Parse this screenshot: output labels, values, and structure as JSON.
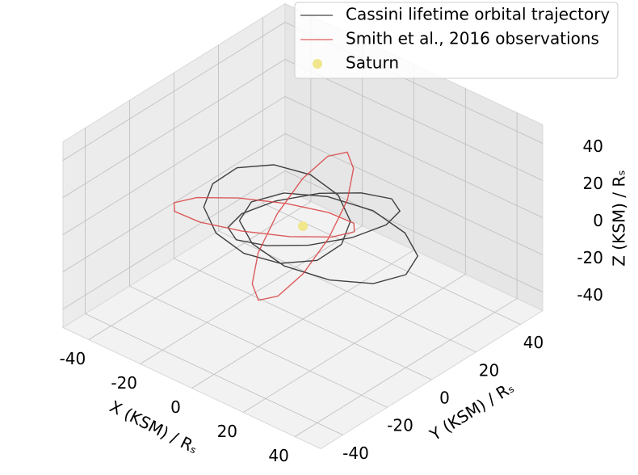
{
  "chart_data": {
    "type": "line3d",
    "xlabel": "X (KSM) / Rₛ",
    "ylabel": "Y (KSM) / Rₛ",
    "zlabel": "Z (KSM) / Rₛ",
    "xlim": [
      -50,
      50
    ],
    "ylim": [
      -50,
      50
    ],
    "zlim": [
      -50,
      50
    ],
    "xticks": [
      -40,
      -20,
      0,
      20,
      40
    ],
    "yticks": [
      -40,
      -20,
      0,
      20,
      40
    ],
    "zticks": [
      -40,
      -20,
      0,
      20,
      40
    ],
    "grid": true,
    "legend": "upper right",
    "series": [
      {
        "name": "Cassini lifetime orbital trajectory",
        "color": "#222222",
        "x": [
          40,
          36,
          25,
          10,
          -5,
          -16,
          -20,
          -16,
          -5,
          10,
          25,
          36,
          40,
          null,
          15,
          12,
          2.5,
          -10,
          -22.5,
          -32,
          -35,
          -32,
          -22.5,
          -10,
          2.5,
          12,
          15,
          null,
          15,
          13,
          7.5,
          0,
          -7.5,
          -13,
          -15,
          -13,
          -7.5,
          0,
          7.5,
          13,
          15
        ],
        "y": [
          0,
          10,
          17,
          20,
          17,
          10,
          0,
          -10,
          -17,
          -20,
          -17,
          -10,
          0,
          null,
          0,
          7.5,
          13,
          15,
          13,
          7.5,
          0,
          -7.5,
          -13,
          -15,
          -13,
          -7.5,
          0,
          null,
          5,
          22.5,
          35,
          40,
          35,
          22.5,
          5,
          -12.5,
          -25,
          -30,
          -25,
          -12.5,
          5
        ],
        "z": [
          0,
          0,
          0,
          0,
          0,
          0,
          0,
          0,
          0,
          0,
          0,
          0,
          0,
          null,
          0,
          5,
          8.7,
          10,
          8.7,
          5,
          0,
          -5,
          -8.7,
          -10,
          -8.7,
          -5,
          0,
          null,
          0,
          -7.5,
          -13,
          -15,
          -13,
          -7.5,
          0,
          7.5,
          13,
          15,
          13,
          7.5,
          0
        ]
      },
      {
        "name": "Smith et al., 2016 observations",
        "color": "#d94040",
        "x": [
          20,
          15.5,
          2.5,
          -15,
          -32.5,
          -45.5,
          -50,
          -45.5,
          -32.5,
          -15,
          2.5,
          15.5,
          20,
          null,
          10,
          8.7,
          5,
          0,
          -5,
          -8.7,
          -10,
          -8.7,
          -5,
          0,
          5,
          8.7,
          10
        ],
        "y": [
          0,
          5,
          8.7,
          10,
          8.7,
          5,
          0,
          -5,
          -8.7,
          -10,
          -8.7,
          -5,
          0,
          null,
          0,
          10,
          17,
          20,
          17,
          10,
          0,
          -10,
          -17,
          -20,
          -17,
          -10,
          0
        ],
        "z": [
          10,
          8,
          2.5,
          -5,
          -12.5,
          -18,
          -20,
          -18,
          -12.5,
          -5,
          2.5,
          8,
          10,
          null,
          0,
          12.5,
          21.7,
          25,
          21.7,
          12.5,
          0,
          -12.5,
          -21.7,
          -25,
          -21.7,
          -12.5,
          0
        ]
      }
    ],
    "points": {
      "name": "Saturn",
      "color": "#f0e68c",
      "x": [
        0
      ],
      "y": [
        0
      ],
      "z": [
        0
      ]
    }
  }
}
